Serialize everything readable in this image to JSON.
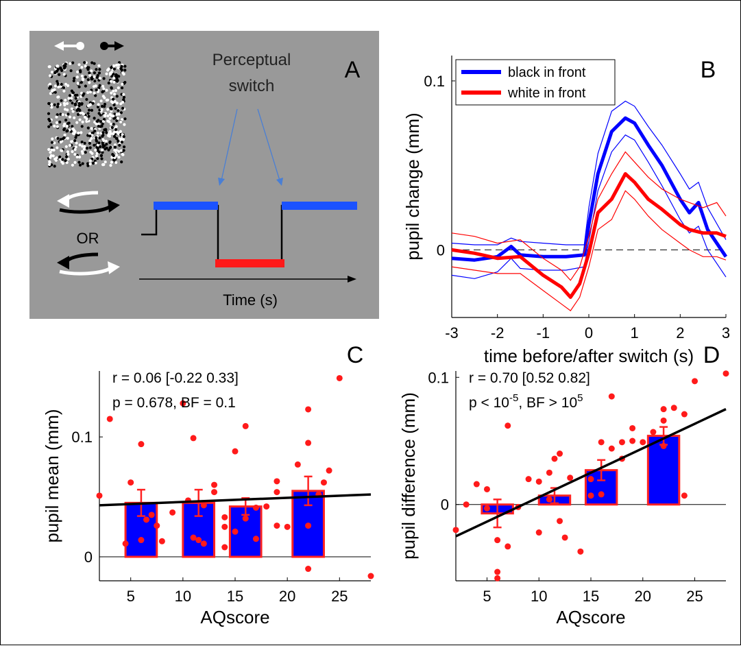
{
  "panels": {
    "A": {
      "letter": "A",
      "switch_label_line1": "Perceptual",
      "switch_label_line2": "switch",
      "or_label": "OR",
      "time_label": "Time (s)"
    },
    "B": {
      "letter": "B"
    },
    "C": {
      "letter": "C"
    },
    "D": {
      "letter": "D"
    }
  },
  "chart_data": [
    {
      "id": "B",
      "type": "line",
      "xlabel": "time before/after switch (s)",
      "ylabel": "pupil change (mm)",
      "xlim": [
        -3,
        3
      ],
      "ylim": [
        -0.04,
        0.115
      ],
      "xticks": [
        -3,
        -2,
        -1,
        0,
        1,
        2,
        3
      ],
      "yticks": [
        0,
        0.1
      ],
      "ytick_labels": [
        "0",
        "0.1"
      ],
      "legend_position": "top-left",
      "reference_line_y": 0,
      "series": [
        {
          "name": "black in front",
          "color": "#0000ff",
          "x": [
            -3,
            -2.5,
            -2,
            -1.7,
            -1.5,
            -1,
            -0.5,
            -0.1,
            0,
            0.2,
            0.5,
            0.8,
            1.0,
            1.3,
            1.6,
            2.0,
            2.2,
            2.4,
            2.6,
            3.0
          ],
          "mean": [
            -0.005,
            -0.006,
            -0.004,
            0.002,
            -0.003,
            -0.004,
            -0.004,
            -0.003,
            0.015,
            0.045,
            0.07,
            0.078,
            0.075,
            0.062,
            0.05,
            0.03,
            0.022,
            0.028,
            0.012,
            -0.004
          ],
          "upper": [
            0.004,
            0.003,
            0.003,
            0.007,
            0.005,
            0.004,
            0.003,
            0.003,
            0.025,
            0.057,
            0.082,
            0.088,
            0.085,
            0.073,
            0.062,
            0.045,
            0.036,
            0.04,
            0.025,
            0.006
          ],
          "lower": [
            -0.015,
            -0.017,
            -0.013,
            -0.005,
            -0.011,
            -0.012,
            -0.012,
            -0.01,
            0.005,
            0.035,
            0.058,
            0.068,
            0.065,
            0.052,
            0.038,
            0.018,
            0.01,
            0.014,
            0.0,
            -0.016
          ]
        },
        {
          "name": "white in front",
          "color": "#ff0000",
          "x": [
            -3,
            -2.5,
            -2,
            -1.5,
            -1,
            -0.6,
            -0.4,
            -0.2,
            0,
            0.2,
            0.5,
            0.8,
            1.0,
            1.3,
            1.6,
            2.0,
            2.2,
            2.5,
            2.8,
            3.0
          ],
          "mean": [
            0.0,
            -0.002,
            -0.005,
            -0.004,
            -0.015,
            -0.022,
            -0.028,
            -0.02,
            -0.002,
            0.022,
            0.03,
            0.045,
            0.04,
            0.03,
            0.024,
            0.015,
            0.012,
            0.01,
            0.01,
            0.008
          ],
          "upper": [
            0.01,
            0.008,
            0.004,
            0.006,
            -0.005,
            -0.012,
            -0.018,
            -0.01,
            0.008,
            0.03,
            0.045,
            0.058,
            0.052,
            0.043,
            0.036,
            0.03,
            0.028,
            0.025,
            0.028,
            0.02
          ],
          "lower": [
            -0.01,
            -0.012,
            -0.014,
            -0.014,
            -0.024,
            -0.032,
            -0.036,
            -0.028,
            -0.01,
            0.012,
            0.018,
            0.035,
            0.03,
            0.02,
            0.012,
            0.004,
            0.0,
            -0.004,
            -0.004,
            -0.006
          ]
        }
      ]
    },
    {
      "id": "C",
      "type": "bar",
      "xlabel": "AQscore",
      "ylabel": "pupil mean (mm)",
      "xlim": [
        2,
        28
      ],
      "ylim": [
        -0.02,
        0.155
      ],
      "xticks": [
        5,
        10,
        15,
        20,
        25
      ],
      "yticks": [
        0,
        0.1
      ],
      "ytick_labels": [
        "0",
        "0.1"
      ],
      "stat_line1": "r = 0.06 [-0.22 0.33]",
      "stat_line2": "p = 0.678, BF = 0.1",
      "bars": [
        {
          "x": 6,
          "width": 3,
          "value": 0.045,
          "err": 0.011
        },
        {
          "x": 11.5,
          "width": 3,
          "value": 0.045,
          "err": 0.011
        },
        {
          "x": 16,
          "width": 3,
          "value": 0.042,
          "err": 0.007
        },
        {
          "x": 22,
          "width": 3,
          "value": 0.055,
          "err": 0.012
        }
      ],
      "fit_line": {
        "x": [
          2,
          28
        ],
        "y": [
          0.043,
          0.052
        ]
      },
      "points": [
        [
          2,
          0.051
        ],
        [
          3,
          0.115
        ],
        [
          4.5,
          0.011
        ],
        [
          5,
          0.062
        ],
        [
          6,
          0.094
        ],
        [
          6,
          0.014
        ],
        [
          6.5,
          0.031
        ],
        [
          7,
          0.035
        ],
        [
          7.5,
          0.026
        ],
        [
          8,
          0.013
        ],
        [
          9,
          0.037
        ],
        [
          10,
          0.128
        ],
        [
          10.5,
          0.047
        ],
        [
          11,
          0.099
        ],
        [
          11,
          0.016
        ],
        [
          11.5,
          0.014
        ],
        [
          12,
          0.043
        ],
        [
          12,
          0.011
        ],
        [
          13,
          0.06
        ],
        [
          13,
          0.054
        ],
        [
          14,
          0.033
        ],
        [
          14,
          0.025
        ],
        [
          14,
          0.008
        ],
        [
          15,
          0.088
        ],
        [
          15,
          0.021
        ],
        [
          16,
          0.109
        ],
        [
          16,
          0.032
        ],
        [
          17,
          0.041
        ],
        [
          17,
          0.015
        ],
        [
          18,
          0.042
        ],
        [
          19,
          0.054
        ],
        [
          19,
          0.026
        ],
        [
          19,
          0.063
        ],
        [
          20,
          0.025
        ],
        [
          21,
          0.077
        ],
        [
          22,
          0.123
        ],
        [
          22,
          0.095
        ],
        [
          22,
          0.026
        ],
        [
          22,
          -0.01
        ],
        [
          23,
          0.052
        ],
        [
          23.5,
          0.062
        ],
        [
          24,
          0.072
        ],
        [
          25,
          0.149
        ],
        [
          28,
          -0.016
        ]
      ]
    },
    {
      "id": "D",
      "type": "bar",
      "xlabel": "AQscore",
      "ylabel": "pupil difference (mm)",
      "xlim": [
        2,
        28
      ],
      "ylim": [
        -0.06,
        0.105
      ],
      "xticks": [
        5,
        10,
        15,
        20,
        25
      ],
      "yticks": [
        0,
        0.1
      ],
      "ytick_labels": [
        "0",
        "0.1"
      ],
      "stat_line1": "r = 0.70 [0.52 0.82]",
      "stat_line2_prefix": "p < 10",
      "stat_line2_exp1": "-5",
      "stat_line2_mid": ", BF > 10",
      "stat_line2_exp2": "5",
      "bars": [
        {
          "x": 6,
          "width": 3,
          "value": -0.007,
          "err": 0.011
        },
        {
          "x": 11.5,
          "width": 3,
          "value": 0.007,
          "err": 0.006
        },
        {
          "x": 16,
          "width": 3,
          "value": 0.027,
          "err": 0.008
        },
        {
          "x": 22,
          "width": 3,
          "value": 0.054,
          "err": 0.007
        }
      ],
      "fit_line": {
        "x": [
          2,
          28
        ],
        "y": [
          -0.025,
          0.075
        ]
      },
      "points": [
        [
          2,
          -0.02
        ],
        [
          3,
          0.0
        ],
        [
          4,
          0.016
        ],
        [
          5,
          0.012
        ],
        [
          5,
          -0.003
        ],
        [
          6,
          -0.028
        ],
        [
          6,
          -0.053
        ],
        [
          6,
          -0.058
        ],
        [
          7,
          0.062
        ],
        [
          7,
          -0.033
        ],
        [
          8,
          -0.002
        ],
        [
          9,
          0.02
        ],
        [
          10,
          0.018
        ],
        [
          10,
          -0.022
        ],
        [
          11,
          0.025
        ],
        [
          11,
          0.004
        ],
        [
          11.5,
          0.036
        ],
        [
          12,
          0.04
        ],
        [
          12,
          -0.013
        ],
        [
          12.5,
          -0.026
        ],
        [
          13,
          0.021
        ],
        [
          14,
          -0.037
        ],
        [
          15,
          0.02
        ],
        [
          15,
          0.007
        ],
        [
          16,
          0.049
        ],
        [
          16,
          0.008
        ],
        [
          17,
          0.044
        ],
        [
          17,
          0.085
        ],
        [
          18,
          0.036
        ],
        [
          18,
          0.049
        ],
        [
          19,
          0.06
        ],
        [
          19,
          0.05
        ],
        [
          20,
          0.049
        ],
        [
          21,
          0.057
        ],
        [
          22,
          0.075
        ],
        [
          22,
          0.066
        ],
        [
          22,
          0.046
        ],
        [
          23,
          0.076
        ],
        [
          24,
          0.071
        ],
        [
          24,
          0.007
        ],
        [
          25,
          0.097
        ],
        [
          28,
          0.103
        ]
      ]
    }
  ]
}
